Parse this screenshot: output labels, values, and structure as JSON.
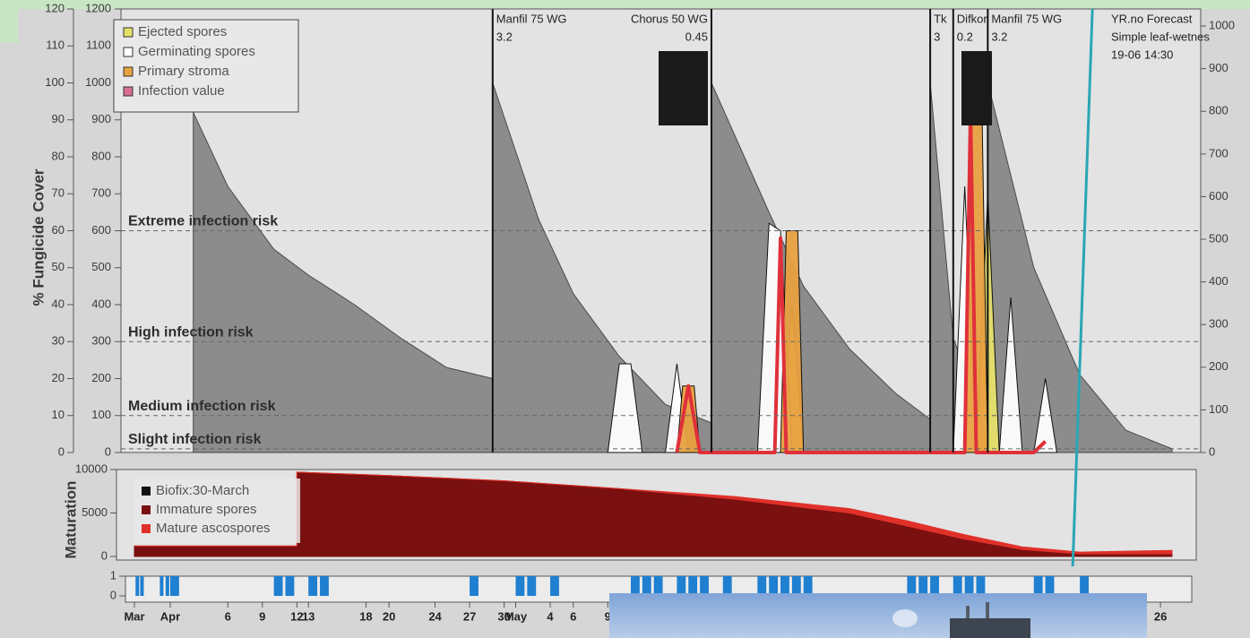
{
  "chart_data": [
    {
      "type": "area",
      "y_label": "% Fungicide Cover",
      "ylim": [
        0,
        120
      ],
      "yticks": [
        0,
        10,
        20,
        30,
        40,
        50,
        60,
        70,
        80,
        90,
        100,
        110,
        120
      ],
      "y2lim": [
        0,
        1200
      ],
      "y2ticks": [
        0,
        100,
        200,
        300,
        400,
        500,
        600,
        700,
        800,
        900,
        1000,
        1100,
        1200
      ],
      "y3lim": [
        0,
        1040
      ],
      "y3ticks": [
        0,
        100,
        200,
        300,
        400,
        500,
        600,
        700,
        800,
        900,
        1000
      ],
      "risk_levels": [
        {
          "label": "Extreme infection risk",
          "value": 60
        },
        {
          "label": "High infection risk",
          "value": 30
        },
        {
          "label": "Medium infection risk",
          "value": 10
        },
        {
          "label": "Slight infection risk",
          "value": 1
        }
      ],
      "sprays": [
        {
          "x": 59,
          "product": "Manfil 75 WG",
          "dose": 3.2
        },
        {
          "x": 78,
          "product": "Chorus 50 WG",
          "dose": 0.45
        },
        {
          "x": 97,
          "product": "Tk",
          "dose": 3
        },
        {
          "x": 99,
          "product": "Difkor",
          "dose": 0.2
        },
        {
          "x": 102,
          "product": "Manfil 75 WG",
          "dose": 3.2
        }
      ],
      "forecast": {
        "x": 110,
        "lines": [
          "YR.no Forecast",
          "Simple leaf-wetnes",
          "19-06 14:30"
        ],
        "color": "#2aa6b4"
      },
      "series": [
        {
          "color": "#7c7c7c",
          "x": [
            33,
            36,
            40,
            43,
            47,
            51,
            55,
            59,
            59,
            63,
            66,
            70,
            74,
            78,
            78,
            83,
            86,
            90,
            94,
            97,
            97,
            99,
            102,
            102,
            106,
            110,
            114,
            118
          ],
          "values": [
            92,
            72,
            55,
            48,
            40,
            31,
            23,
            20,
            100,
            63,
            43,
            26,
            13,
            8,
            100,
            65,
            45,
            28,
            16,
            9,
            100,
            31,
            6,
            100,
            50,
            21,
            6,
            1
          ]
        },
        {
          "name": "Ejected spores",
          "color": "#e6e06a",
          "x": [
            84,
            85,
            86,
            101,
            102,
            103
          ],
          "values": [
            0,
            40,
            0,
            0,
            70,
            0
          ]
        },
        {
          "name": "Germinating spores",
          "color": "#ffffff",
          "x": [
            69,
            70,
            71,
            72,
            74,
            75,
            76,
            82,
            83,
            84,
            85,
            99,
            100,
            101,
            103,
            104,
            105,
            106,
            107,
            108
          ],
          "values": [
            0,
            24,
            24,
            0,
            0,
            24,
            0,
            0,
            62,
            60,
            0,
            0,
            72,
            0,
            0,
            42,
            0,
            0,
            20,
            0
          ]
        },
        {
          "name": "Primary stroma",
          "color": "#e8a040",
          "x": [
            75,
            75.5,
            76.5,
            77,
            84,
            84.5,
            85.5,
            86,
            100,
            100.5,
            101.5,
            102
          ],
          "values": [
            0,
            18,
            18,
            0,
            0,
            60,
            60,
            0,
            0,
            92,
            92,
            0
          ]
        },
        {
          "name": "Infection value",
          "color": "#e0303a",
          "kind": "line",
          "x": [
            75,
            76,
            77,
            83.5,
            84,
            84.5,
            100,
            100.5,
            101,
            106,
            107
          ],
          "values": [
            0,
            18,
            0,
            0,
            58,
            0,
            0,
            92,
            0,
            0,
            3
          ]
        }
      ]
    },
    {
      "type": "area",
      "y_label": "Maturation",
      "stacked": true,
      "ylim": [
        0,
        10000
      ],
      "yticks": [
        0,
        5000,
        10000
      ],
      "biofix": {
        "label": "Biofix:30-March",
        "color": "#111111"
      },
      "x": [
        0,
        42,
        42,
        50,
        60,
        70,
        80,
        90,
        95,
        100,
        105,
        110,
        118
      ],
      "series": [
        {
          "name": "Immature spores",
          "color": "#7a1010",
          "values": [
            1200,
            1200,
            9700,
            9300,
            8700,
            7800,
            6600,
            5000,
            3500,
            2000,
            800,
            300,
            300
          ]
        },
        {
          "name": "Mature ascospores",
          "color": "#e0302a",
          "values": [
            0,
            0,
            0,
            0,
            0,
            0,
            300,
            500,
            600,
            500,
            300,
            200,
            400
          ]
        }
      ]
    },
    {
      "type": "bar",
      "color": "#1f7fd0",
      "ylim": [
        0,
        1
      ],
      "yticks": [
        0,
        1
      ],
      "xticks": [
        {
          "value": 0,
          "label": "Mar"
        },
        {
          "value": 31,
          "label": "Apr"
        },
        {
          "value": 36,
          "label": "6"
        },
        {
          "value": 39,
          "label": "9"
        },
        {
          "value": 42,
          "label": "12"
        },
        {
          "value": 43,
          "label": "13"
        },
        {
          "value": 48,
          "label": "18"
        },
        {
          "value": 50,
          "label": "20"
        },
        {
          "value": 54,
          "label": "24"
        },
        {
          "value": 57,
          "label": "27"
        },
        {
          "value": 60,
          "label": "30"
        },
        {
          "value": 61,
          "label": "May"
        },
        {
          "value": 64,
          "label": "4"
        },
        {
          "value": 66,
          "label": "6"
        },
        {
          "value": 69,
          "label": "9"
        },
        {
          "value": 117,
          "label": "26"
        }
      ],
      "x": [
        1,
        5,
        22,
        27,
        31,
        40,
        41,
        43,
        44,
        57,
        61,
        62,
        64,
        71,
        72,
        73,
        75,
        76,
        77,
        79,
        82,
        83,
        84,
        85,
        86,
        95,
        96,
        97,
        99,
        100,
        101,
        106,
        107,
        110
      ],
      "values": [
        1,
        1,
        1,
        1,
        1,
        1,
        1,
        1,
        1,
        1,
        1,
        1,
        1,
        1,
        1,
        1,
        1,
        1,
        1,
        1,
        1,
        1,
        1,
        1,
        1,
        1,
        1,
        1,
        1,
        1,
        1,
        1,
        1,
        1
      ]
    }
  ]
}
